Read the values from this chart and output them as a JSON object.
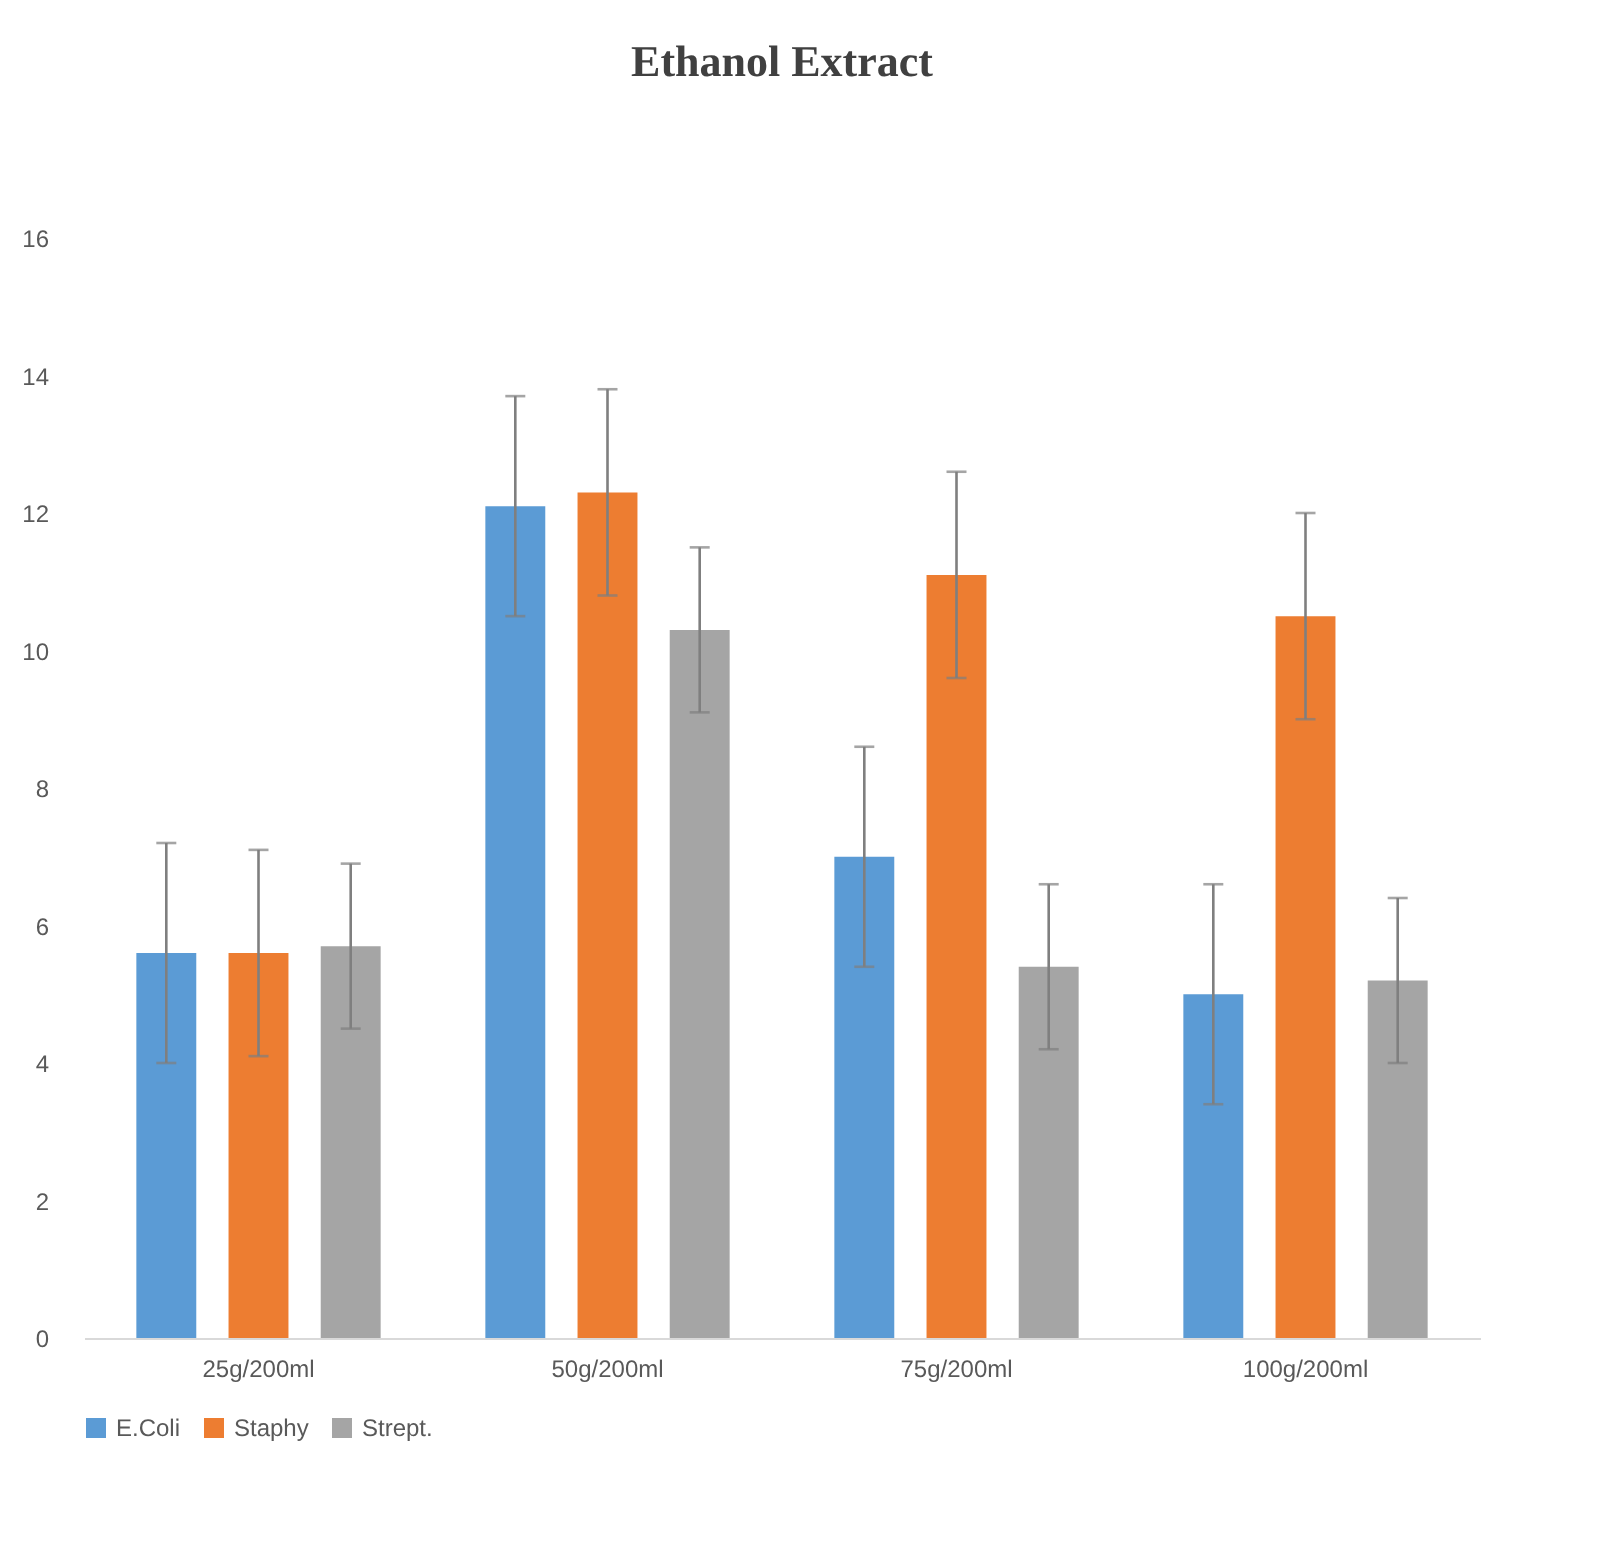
{
  "chart_data": {
    "type": "bar",
    "title": "Ethanol Extract",
    "categories": [
      "25g/200ml",
      "50g/200ml",
      "75g/200ml",
      "100g/200ml"
    ],
    "series": [
      {
        "name": "E.Coli",
        "color": "#5b9bd5",
        "values": [
          5.6,
          12.1,
          7.0,
          5.0
        ],
        "errors": [
          1.6,
          1.6,
          1.6,
          1.6
        ]
      },
      {
        "name": "Staphy",
        "color": "#ed7d31",
        "values": [
          5.6,
          12.3,
          11.1,
          10.5
        ],
        "errors": [
          1.5,
          1.5,
          1.5,
          1.5
        ]
      },
      {
        "name": "Strept.",
        "color": "#a5a5a5",
        "values": [
          5.7,
          10.3,
          5.4,
          5.2
        ],
        "errors": [
          1.2,
          1.2,
          1.2,
          1.2
        ]
      }
    ],
    "ylim": [
      0,
      16
    ],
    "yticks": [
      0,
      2,
      4,
      6,
      8,
      10,
      12,
      14,
      16
    ],
    "grid": false,
    "legend": "bottom"
  }
}
